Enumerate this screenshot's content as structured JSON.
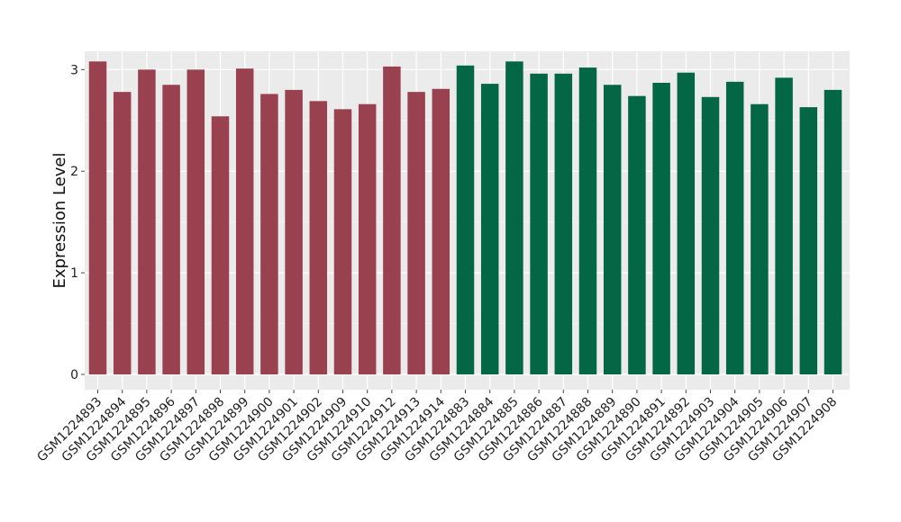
{
  "chart_data": {
    "type": "bar",
    "title": "",
    "xlabel": "",
    "ylabel": "Expression Level",
    "ylim": [
      0,
      3.18
    ],
    "yticks": [
      0,
      1,
      2,
      3
    ],
    "grid": true,
    "background": "#ebebeb",
    "categories": [
      "GSM1224893",
      "GSM1224894",
      "GSM1224895",
      "GSM1224896",
      "GSM1224897",
      "GSM1224898",
      "GSM1224899",
      "GSM1224900",
      "GSM1224901",
      "GSM1224902",
      "GSM1224909",
      "GSM1224910",
      "GSM1224912",
      "GSM1224913",
      "GSM1224914",
      "GSM1224883",
      "GSM1224884",
      "GSM1224885",
      "GSM1224886",
      "GSM1224887",
      "GSM1224888",
      "GSM1224889",
      "GSM1224890",
      "GSM1224891",
      "GSM1224892",
      "GSM1224903",
      "GSM1224904",
      "GSM1224905",
      "GSM1224906",
      "GSM1224907",
      "GSM1224908"
    ],
    "values": [
      3.08,
      2.78,
      3.0,
      2.85,
      3.0,
      2.54,
      3.01,
      2.76,
      2.8,
      2.69,
      2.61,
      2.66,
      3.03,
      2.78,
      2.81,
      3.04,
      2.86,
      3.08,
      2.96,
      2.96,
      3.02,
      2.85,
      2.74,
      2.87,
      2.97,
      2.73,
      2.88,
      2.66,
      2.92,
      2.63,
      2.8
    ],
    "colors": [
      "#9a4150",
      "#9a4150",
      "#9a4150",
      "#9a4150",
      "#9a4150",
      "#9a4150",
      "#9a4150",
      "#9a4150",
      "#9a4150",
      "#9a4150",
      "#9a4150",
      "#9a4150",
      "#9a4150",
      "#9a4150",
      "#9a4150",
      "#036645",
      "#036645",
      "#036645",
      "#036645",
      "#036645",
      "#036645",
      "#036645",
      "#036645",
      "#036645",
      "#036645",
      "#036645",
      "#036645",
      "#036645",
      "#036645",
      "#036645",
      "#036645"
    ]
  }
}
